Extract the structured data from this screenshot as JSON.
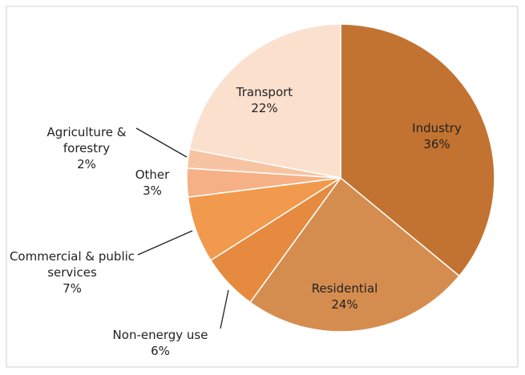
{
  "chart_data": {
    "type": "pie",
    "categories": [
      "Industry",
      "Residential",
      "Non-energy use",
      "Commercial & public services",
      "Other",
      "Agriculture & forestry",
      "Transport"
    ],
    "values": [
      36,
      24,
      6,
      7,
      3,
      2,
      22
    ],
    "value_labels": [
      "36%",
      "24%",
      "6%",
      "7%",
      "3%",
      "2%",
      "22%"
    ],
    "colors": [
      "#c27331",
      "#d58d4f",
      "#e58a3e",
      "#f19a4e",
      "#f5b185",
      "#f7c4a3",
      "#fbe0ce"
    ]
  }
}
